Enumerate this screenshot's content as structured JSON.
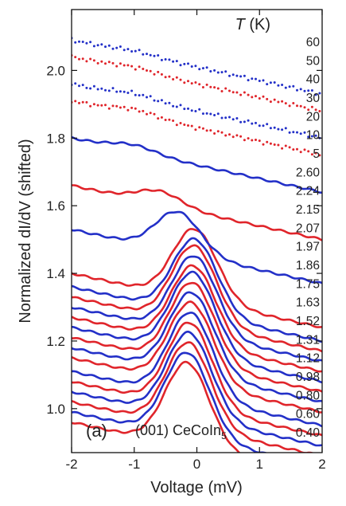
{
  "chart_data": {
    "type": "line",
    "title": "",
    "xlabel": "Voltage (mV)",
    "ylabel": "Normalized dI/dV (shifted)",
    "xlim": [
      -2,
      2
    ],
    "ylim": [
      0.87,
      2.18
    ],
    "xticks": [
      -2,
      -1,
      0,
      1,
      2
    ],
    "yticks": [
      1.0,
      1.2,
      1.4,
      1.6,
      1.8,
      2.0
    ],
    "grid": false,
    "legend_title": "T (K)",
    "panel_label": "(a)",
    "annotation": "(001) CeCoIn5",
    "colors": {
      "red": "#e0252b",
      "blue": "#2330c8"
    },
    "series": [
      {
        "name": "0.40",
        "color": "red",
        "style": "line",
        "baseline": 0.88,
        "peak": 0.25,
        "center": -0.15,
        "ctrl_y": 0.935
      },
      {
        "name": "0.60",
        "color": "blue",
        "style": "line",
        "baseline": 0.91,
        "peak": 0.25,
        "center": -0.15,
        "ctrl_y": 0.965
      },
      {
        "name": "0.80",
        "color": "red",
        "style": "line",
        "baseline": 0.94,
        "peak": 0.25,
        "center": -0.13,
        "ctrl_y": 0.995
      },
      {
        "name": "0.98",
        "color": "blue",
        "style": "line",
        "baseline": 0.97,
        "peak": 0.25,
        "center": -0.12,
        "ctrl_y": 1.025
      },
      {
        "name": "1.12",
        "color": "red",
        "style": "line",
        "baseline": 1.0,
        "peak": 0.25,
        "center": -0.11,
        "ctrl_y": 1.055
      },
      {
        "name": "1.31",
        "color": "blue",
        "style": "line",
        "baseline": 1.03,
        "peak": 0.25,
        "center": -0.1,
        "ctrl_y": 1.085
      },
      {
        "name": "1.52",
        "color": "red",
        "style": "line",
        "baseline": 1.07,
        "peak": 0.24,
        "center": -0.09,
        "ctrl_y": 1.12
      },
      {
        "name": "1.63",
        "color": "blue",
        "style": "line",
        "baseline": 1.1,
        "peak": 0.24,
        "center": -0.08,
        "ctrl_y": 1.15
      },
      {
        "name": "1.75",
        "color": "red",
        "style": "line",
        "baseline": 1.13,
        "peak": 0.24,
        "center": -0.07,
        "ctrl_y": 1.18
      },
      {
        "name": "1.86",
        "color": "blue",
        "style": "line",
        "baseline": 1.16,
        "peak": 0.24,
        "center": -0.06,
        "ctrl_y": 1.21
      },
      {
        "name": "1.97",
        "color": "red",
        "style": "line",
        "baseline": 1.19,
        "peak": 0.23,
        "center": -0.05,
        "ctrl_y": 1.24
      },
      {
        "name": "2.07",
        "color": "blue",
        "style": "line",
        "baseline": 1.22,
        "peak": 0.23,
        "center": -0.04,
        "ctrl_y": 1.27
      },
      {
        "name": "2.15",
        "color": "red",
        "style": "line",
        "baseline": 1.25,
        "peak": 0.23,
        "center": -0.04,
        "ctrl_y": 1.3
      },
      {
        "name": "2.24",
        "color": "blue",
        "style": "line",
        "baseline": 1.28,
        "peak": 0.22,
        "center": -0.03,
        "ctrl_y": 1.33
      },
      {
        "name": "2.60",
        "color": "red",
        "style": "line",
        "baseline": 1.32,
        "peak": 0.21,
        "center": -0.03,
        "ctrl_y": 1.365
      },
      {
        "name": "5",
        "color": "blue",
        "style": "line",
        "baseline": 1.45,
        "peak": 0.12,
        "center": -0.3,
        "ctrl_y": 1.5
      },
      {
        "name": "10",
        "color": "red",
        "style": "line",
        "baseline": 1.58,
        "peak": 0.04,
        "center": -0.6,
        "ctrl_y": 1.63
      },
      {
        "name": "20",
        "color": "blue",
        "style": "line",
        "baseline": 1.72,
        "peak": 0.02,
        "center": -1.0,
        "ctrl_y": 1.77
      },
      {
        "name": "30",
        "color": "red",
        "style": "dotted",
        "baseline": 1.83,
        "peak": 0.015,
        "center": -1.0,
        "ctrl_y": 1.88
      },
      {
        "name": "40",
        "color": "blue",
        "style": "dotted",
        "baseline": 1.88,
        "peak": 0.012,
        "center": -1.0,
        "ctrl_y": 1.93
      },
      {
        "name": "50",
        "color": "red",
        "style": "dotted",
        "baseline": 1.96,
        "peak": 0.01,
        "center": -1.0,
        "ctrl_y": 2.0
      },
      {
        "name": "60",
        "color": "blue",
        "style": "dotted",
        "baseline": 2.01,
        "peak": 0.008,
        "center": -1.0,
        "ctrl_y": 2.05
      }
    ]
  }
}
